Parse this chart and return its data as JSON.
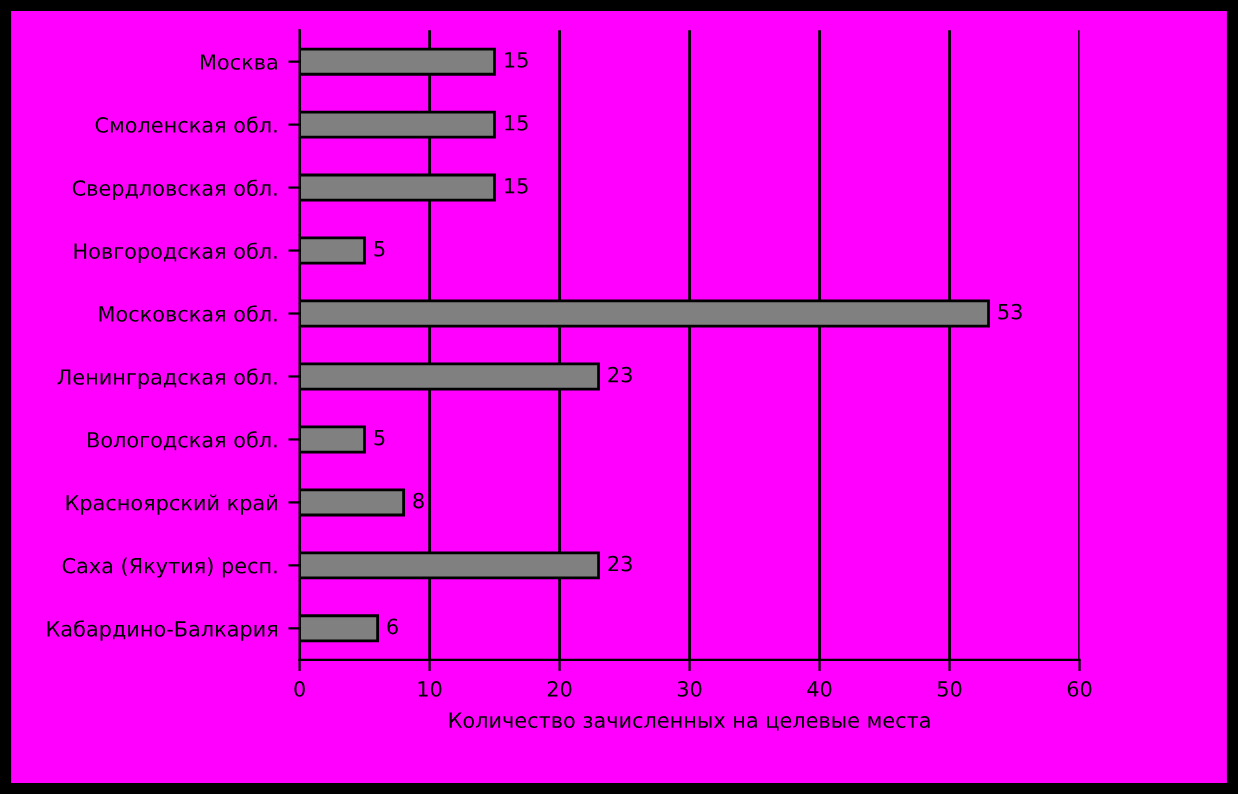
{
  "chart_data": {
    "type": "bar",
    "orientation": "horizontal",
    "xlabel": "Количество зачисленных на целевые места",
    "categories": [
      "Москва",
      "Смоленская обл.",
      "Свердловская обл.",
      "Новгородская обл.",
      "Московская обл.",
      "Ленинградская обл.",
      "Вологодская обл.",
      "Красноярский край",
      "Саха (Якутия) респ.",
      "Кабардино-Балкария"
    ],
    "values": [
      15,
      15,
      15,
      5,
      53,
      23,
      5,
      8,
      23,
      6
    ],
    "color": "#808080",
    "xlim": [
      0,
      60
    ],
    "xticks": [
      0,
      10,
      20,
      30,
      40,
      50,
      60
    ],
    "grid": "x",
    "data_labels": true
  }
}
